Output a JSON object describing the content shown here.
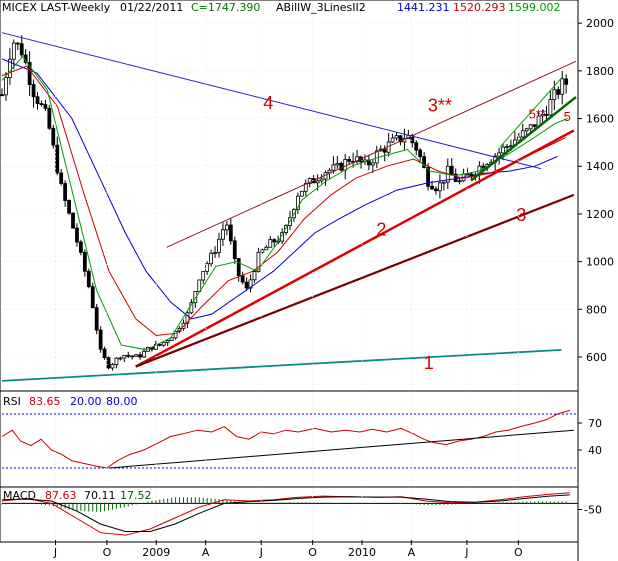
{
  "chart_data": [
    {
      "type": "candlestick",
      "header": {
        "symbol": "MICEX LAST-Weekly",
        "date": "01/22/2011",
        "close_label": "C=1747.390",
        "indicator": "ABillW_3LinesII2",
        "ma_values": [
          "1441.231",
          "1520.293",
          "1599.002"
        ],
        "ma_colors": [
          "#0000cc",
          "#cc0000",
          "#009900"
        ]
      },
      "ylim": [
        470,
        2030
      ],
      "yticks": [
        600,
        800,
        1000,
        1200,
        1400,
        1600,
        1800,
        2000
      ],
      "ytick_labels": [
        "600",
        "800",
        "1000",
        "1200",
        "1400",
        "1600",
        "1800",
        "2000"
      ],
      "xlim": [
        2008.28,
        2011.08
      ],
      "xticks": [
        {
          "x": 2008.54,
          "label": "J"
        },
        {
          "x": 2008.79,
          "label": "O"
        },
        {
          "x": 2009.03,
          "label": "2009"
        },
        {
          "x": 2009.27,
          "label": "A"
        },
        {
          "x": 2009.54,
          "label": "J"
        },
        {
          "x": 2009.79,
          "label": "O"
        },
        {
          "x": 2010.03,
          "label": "2010"
        },
        {
          "x": 2010.27,
          "label": "A"
        },
        {
          "x": 2010.54,
          "label": "J"
        },
        {
          "x": 2010.79,
          "label": "O"
        }
      ],
      "ohlc_anchors": [
        [
          2008.28,
          1700
        ],
        [
          2008.33,
          1930
        ],
        [
          2008.38,
          1880
        ],
        [
          2008.43,
          1720
        ],
        [
          2008.5,
          1600
        ],
        [
          2008.57,
          1300
        ],
        [
          2008.64,
          1100
        ],
        [
          2008.71,
          870
        ],
        [
          2008.76,
          620
        ],
        [
          2008.8,
          560
        ],
        [
          2008.86,
          610
        ],
        [
          2008.94,
          600
        ],
        [
          2009.0,
          640
        ],
        [
          2009.05,
          650
        ],
        [
          2009.12,
          700
        ],
        [
          2009.19,
          790
        ],
        [
          2009.24,
          940
        ],
        [
          2009.31,
          1040
        ],
        [
          2009.37,
          1170
        ],
        [
          2009.42,
          960
        ],
        [
          2009.47,
          880
        ],
        [
          2009.53,
          1030
        ],
        [
          2009.59,
          1080
        ],
        [
          2009.65,
          1110
        ],
        [
          2009.72,
          1290
        ],
        [
          2009.79,
          1340
        ],
        [
          2009.85,
          1380
        ],
        [
          2009.91,
          1390
        ],
        [
          2009.98,
          1440
        ],
        [
          2010.05,
          1400
        ],
        [
          2010.11,
          1460
        ],
        [
          2010.18,
          1500
        ],
        [
          2010.25,
          1530
        ],
        [
          2010.3,
          1470
        ],
        [
          2010.35,
          1340
        ],
        [
          2010.4,
          1310
        ],
        [
          2010.45,
          1380
        ],
        [
          2010.5,
          1330
        ],
        [
          2010.56,
          1370
        ],
        [
          2010.63,
          1420
        ],
        [
          2010.7,
          1460
        ],
        [
          2010.77,
          1510
        ],
        [
          2010.84,
          1550
        ],
        [
          2010.91,
          1620
        ],
        [
          2010.97,
          1700
        ],
        [
          2011.01,
          1750
        ],
        [
          2011.04,
          1747
        ]
      ],
      "moving_averages": [
        {
          "name": "1441.231",
          "color": "#0000cc",
          "points": [
            [
              2008.28,
              1850
            ],
            [
              2008.45,
              1790
            ],
            [
              2008.62,
              1600
            ],
            [
              2008.75,
              1360
            ],
            [
              2008.88,
              1120
            ],
            [
              2008.98,
              960
            ],
            [
              2009.1,
              830
            ],
            [
              2009.2,
              760
            ],
            [
              2009.3,
              780
            ],
            [
              2009.4,
              840
            ],
            [
              2009.5,
              900
            ],
            [
              2009.6,
              960
            ],
            [
              2009.7,
              1040
            ],
            [
              2009.8,
              1120
            ],
            [
              2009.92,
              1180
            ],
            [
              2010.05,
              1240
            ],
            [
              2010.2,
              1300
            ],
            [
              2010.35,
              1330
            ],
            [
              2010.5,
              1350
            ],
            [
              2010.62,
              1370
            ],
            [
              2010.75,
              1380
            ],
            [
              2010.87,
              1400
            ],
            [
              2010.98,
              1441
            ]
          ]
        },
        {
          "name": "1520.293",
          "color": "#cc0000",
          "points": [
            [
              2008.28,
              1780
            ],
            [
              2008.4,
              1820
            ],
            [
              2008.55,
              1650
            ],
            [
              2008.68,
              1280
            ],
            [
              2008.8,
              960
            ],
            [
              2008.93,
              760
            ],
            [
              2009.03,
              690
            ],
            [
              2009.13,
              700
            ],
            [
              2009.25,
              810
            ],
            [
              2009.38,
              920
            ],
            [
              2009.5,
              960
            ],
            [
              2009.62,
              1040
            ],
            [
              2009.75,
              1180
            ],
            [
              2009.88,
              1280
            ],
            [
              2010.0,
              1350
            ],
            [
              2010.15,
              1400
            ],
            [
              2010.28,
              1430
            ],
            [
              2010.4,
              1380
            ],
            [
              2010.52,
              1350
            ],
            [
              2010.65,
              1370
            ],
            [
              2010.78,
              1420
            ],
            [
              2010.9,
              1470
            ],
            [
              2011.02,
              1520
            ]
          ]
        },
        {
          "name": "1599.002",
          "color": "#009900",
          "points": [
            [
              2008.28,
              1760
            ],
            [
              2008.38,
              1860
            ],
            [
              2008.5,
              1720
            ],
            [
              2008.62,
              1300
            ],
            [
              2008.74,
              880
            ],
            [
              2008.86,
              650
            ],
            [
              2008.98,
              630
            ],
            [
              2009.1,
              680
            ],
            [
              2009.2,
              820
            ],
            [
              2009.32,
              980
            ],
            [
              2009.42,
              1000
            ],
            [
              2009.52,
              960
            ],
            [
              2009.62,
              1080
            ],
            [
              2009.74,
              1260
            ],
            [
              2009.86,
              1340
            ],
            [
              2009.98,
              1400
            ],
            [
              2010.12,
              1440
            ],
            [
              2010.25,
              1470
            ],
            [
              2010.36,
              1380
            ],
            [
              2010.48,
              1360
            ],
            [
              2010.6,
              1380
            ],
            [
              2010.72,
              1440
            ],
            [
              2010.85,
              1510
            ],
            [
              2010.97,
              1580
            ],
            [
              2011.03,
              1600
            ]
          ]
        }
      ],
      "trendlines": [
        {
          "label": "4",
          "color": "#2222cc",
          "from": [
            2008.28,
            1960
          ],
          "to": [
            2010.9,
            1390
          ]
        },
        {
          "label": "3**",
          "color": "#8b1a1a",
          "from": [
            2009.08,
            1060
          ],
          "to": [
            2011.07,
            1840
          ]
        },
        {
          "label": "2",
          "color": "#e00000",
          "from": [
            2008.93,
            560
          ],
          "to": [
            2011.06,
            1550
          ]
        },
        {
          "label": "3",
          "color": "#7a0000",
          "from": [
            2008.93,
            560
          ],
          "to": [
            2011.06,
            1280
          ]
        },
        {
          "label": "1",
          "color": "#0a8a8a",
          "from": [
            2008.28,
            500
          ],
          "to": [
            2011.0,
            630
          ]
        },
        {
          "label": "5",
          "color": "#006600",
          "from": [
            2010.56,
            1340
          ],
          "to": [
            2011.07,
            1690
          ]
        },
        {
          "label": "5**",
          "color": "#00aa00",
          "from": [
            2010.7,
            1480
          ],
          "to": [
            2011.0,
            1770
          ]
        }
      ],
      "annotations": [
        {
          "text": "4",
          "x": 2009.55,
          "y": 1640,
          "size": 18
        },
        {
          "text": "3**",
          "x": 2010.35,
          "y": 1630,
          "size": 18
        },
        {
          "text": "5**",
          "x": 2010.84,
          "y": 1600,
          "size": 13
        },
        {
          "text": "5",
          "x": 2011.01,
          "y": 1590,
          "size": 13
        },
        {
          "text": "2",
          "x": 2010.1,
          "y": 1110,
          "size": 18
        },
        {
          "text": "3",
          "x": 2010.78,
          "y": 1170,
          "size": 18
        },
        {
          "text": "1",
          "x": 2010.33,
          "y": 550,
          "size": 18
        }
      ]
    },
    {
      "type": "line",
      "title": "RSI",
      "values_text": [
        "83.65",
        "20.00",
        "80.00"
      ],
      "colors": [
        "#cc0000",
        "#0000cc",
        "#0000cc"
      ],
      "ylim": [
        0,
        100
      ],
      "yticks": [
        40,
        70
      ],
      "levels": [
        20,
        80
      ],
      "series": [
        {
          "color": "#cc0000",
          "points": [
            [
              2008.28,
              55
            ],
            [
              2008.33,
              62
            ],
            [
              2008.37,
              50
            ],
            [
              2008.42,
              45
            ],
            [
              2008.47,
              52
            ],
            [
              2008.52,
              40
            ],
            [
              2008.57,
              35
            ],
            [
              2008.62,
              28
            ],
            [
              2008.68,
              25
            ],
            [
              2008.74,
              22
            ],
            [
              2008.79,
              20
            ],
            [
              2008.84,
              28
            ],
            [
              2008.9,
              35
            ],
            [
              2008.97,
              40
            ],
            [
              2009.04,
              48
            ],
            [
              2009.1,
              55
            ],
            [
              2009.16,
              58
            ],
            [
              2009.23,
              62
            ],
            [
              2009.3,
              60
            ],
            [
              2009.36,
              66
            ],
            [
              2009.42,
              55
            ],
            [
              2009.48,
              52
            ],
            [
              2009.54,
              60
            ],
            [
              2009.6,
              58
            ],
            [
              2009.66,
              62
            ],
            [
              2009.72,
              60
            ],
            [
              2009.8,
              64
            ],
            [
              2009.88,
              60
            ],
            [
              2009.95,
              62
            ],
            [
              2010.02,
              60
            ],
            [
              2010.08,
              63
            ],
            [
              2010.15,
              60
            ],
            [
              2010.22,
              64
            ],
            [
              2010.28,
              58
            ],
            [
              2010.33,
              52
            ],
            [
              2010.38,
              48
            ],
            [
              2010.44,
              46
            ],
            [
              2010.5,
              50
            ],
            [
              2010.56,
              52
            ],
            [
              2010.62,
              55
            ],
            [
              2010.68,
              60
            ],
            [
              2010.74,
              62
            ],
            [
              2010.8,
              66
            ],
            [
              2010.87,
              70
            ],
            [
              2010.93,
              74
            ],
            [
              2010.98,
              80
            ],
            [
              2011.04,
              84
            ]
          ]
        },
        {
          "color": "#000000",
          "points": [
            [
              2008.8,
              20
            ],
            [
              2011.06,
              62
            ]
          ]
        }
      ]
    },
    {
      "type": "line",
      "title": "MACD",
      "values_text": [
        "87.63",
        "70.11",
        "17.52"
      ],
      "colors": [
        "#cc0000",
        "#000000",
        "#006600"
      ],
      "ylim": [
        -300,
        110
      ],
      "yticks": [
        -50
      ],
      "series": [
        {
          "color": "#cc0000",
          "points": [
            [
              2008.28,
              20
            ],
            [
              2008.4,
              40
            ],
            [
              2008.52,
              0
            ],
            [
              2008.64,
              -120
            ],
            [
              2008.76,
              -240
            ],
            [
              2008.88,
              -260
            ],
            [
              2009.0,
              -210
            ],
            [
              2009.12,
              -120
            ],
            [
              2009.24,
              -30
            ],
            [
              2009.36,
              30
            ],
            [
              2009.48,
              20
            ],
            [
              2009.6,
              30
            ],
            [
              2009.72,
              50
            ],
            [
              2009.84,
              60
            ],
            [
              2009.96,
              55
            ],
            [
              2010.1,
              50
            ],
            [
              2010.22,
              55
            ],
            [
              2010.34,
              20
            ],
            [
              2010.46,
              5
            ],
            [
              2010.58,
              10
            ],
            [
              2010.7,
              30
            ],
            [
              2010.82,
              55
            ],
            [
              2010.94,
              75
            ],
            [
              2011.04,
              88
            ]
          ]
        },
        {
          "color": "#000000",
          "points": [
            [
              2008.28,
              30
            ],
            [
              2008.4,
              35
            ],
            [
              2008.52,
              20
            ],
            [
              2008.64,
              -60
            ],
            [
              2008.76,
              -170
            ],
            [
              2008.88,
              -230
            ],
            [
              2009.0,
              -230
            ],
            [
              2009.12,
              -170
            ],
            [
              2009.24,
              -80
            ],
            [
              2009.36,
              0
            ],
            [
              2009.48,
              15
            ],
            [
              2009.6,
              25
            ],
            [
              2009.72,
              40
            ],
            [
              2009.84,
              52
            ],
            [
              2009.96,
              55
            ],
            [
              2010.1,
              52
            ],
            [
              2010.22,
              52
            ],
            [
              2010.34,
              35
            ],
            [
              2010.46,
              15
            ],
            [
              2010.58,
              10
            ],
            [
              2010.7,
              20
            ],
            [
              2010.82,
              40
            ],
            [
              2010.94,
              60
            ],
            [
              2011.04,
              70
            ]
          ]
        }
      ]
    }
  ]
}
